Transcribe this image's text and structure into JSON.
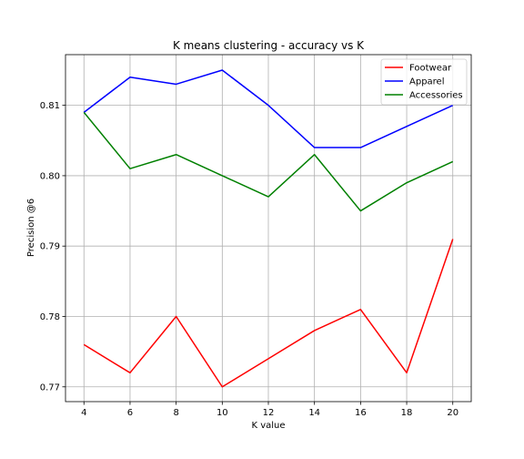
{
  "chart_data": {
    "type": "line",
    "title": "K means clustering - accuracy vs K",
    "xlabel": "K value",
    "ylabel": "Precision @6",
    "x": [
      4,
      6,
      8,
      10,
      12,
      14,
      16,
      18,
      20
    ],
    "xlim": [
      3.2,
      20.8
    ],
    "ylim": [
      0.7679,
      0.8172
    ],
    "xticks": [
      "4",
      "6",
      "8",
      "10",
      "12",
      "14",
      "16",
      "18",
      "20"
    ],
    "yticks": [
      "0.77",
      "0.78",
      "0.79",
      "0.80",
      "0.81"
    ],
    "grid": true,
    "legend_position": "top-right",
    "series": [
      {
        "name": "Footwear",
        "color": "#ff0000",
        "values": [
          0.776,
          0.772,
          0.78,
          0.77,
          0.774,
          0.778,
          0.781,
          0.772,
          0.791
        ]
      },
      {
        "name": "Apparel",
        "color": "#0000ff",
        "values": [
          0.809,
          0.814,
          0.813,
          0.815,
          0.81,
          0.804,
          0.804,
          0.807,
          0.81
        ]
      },
      {
        "name": "Accessories",
        "color": "#008000",
        "values": [
          0.809,
          0.801,
          0.803,
          0.8,
          0.797,
          0.803,
          0.795,
          0.799,
          0.802
        ]
      }
    ]
  }
}
